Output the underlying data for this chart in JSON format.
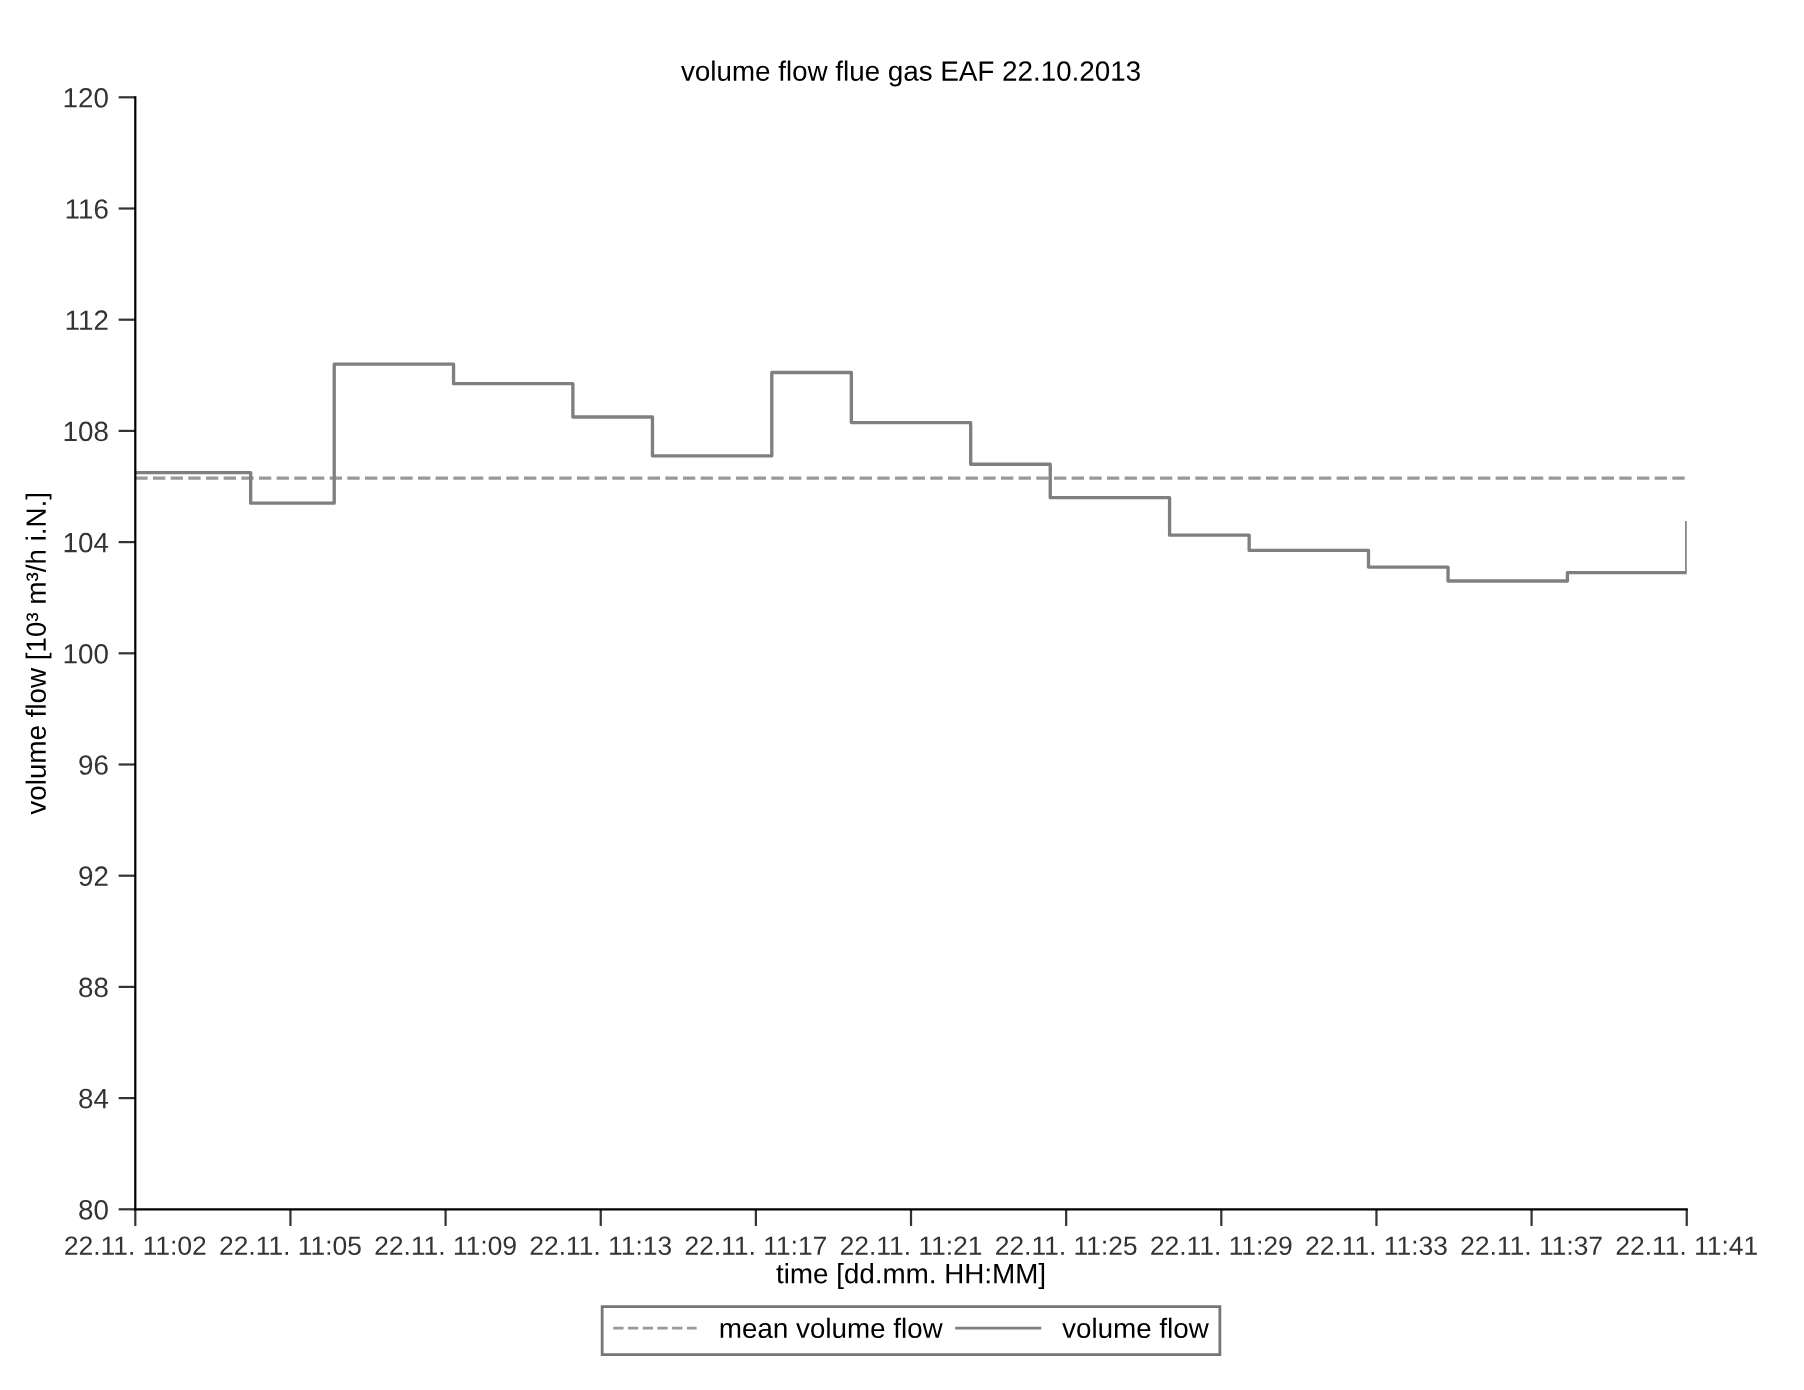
{
  "chart_data": {
    "type": "step",
    "title": "volume flow flue gas EAF 22.10.2013",
    "xlabel": "time [dd.mm. HH:MM]",
    "ylabel": "volume flow [10³ m³/h i.N.]",
    "x": [
      "2013-11-22T11:02",
      "2013-11-22T11:04:54",
      "2013-11-22T11:07",
      "2013-11-22T11:10",
      "2013-11-22T11:13",
      "2013-11-22T11:15",
      "2013-11-22T11:18",
      "2013-11-22T11:20",
      "2013-11-22T11:23",
      "2013-11-22T11:25",
      "2013-11-22T11:28",
      "2013-11-22T11:30",
      "2013-11-22T11:33",
      "2013-11-22T11:35",
      "2013-11-22T11:38",
      "2013-11-22T11:41"
    ],
    "series": [
      {
        "name": "volume flow",
        "color": "#7f7f7f",
        "line_style": "solid",
        "values": [
          106.5,
          105.4,
          110.4,
          109.7,
          108.5,
          107.1,
          110.1,
          108.3,
          106.8,
          105.6,
          104.25,
          103.7,
          103.1,
          102.6,
          102.9,
          104.7
        ]
      }
    ],
    "ref_lines": [
      {
        "axis": "y",
        "value": 106.3,
        "label": "mean volume flow",
        "color": "#999999",
        "line_style": "dashed"
      }
    ],
    "xlim": [
      "2013-11-22T11:02",
      "2013-11-22T11:41"
    ],
    "xticks": [
      {
        "value": "2013-11-22T11:02",
        "label": "22.11. 11:02"
      },
      {
        "value": "2013-11-22T11:05:54",
        "label": "22.11. 11:05"
      },
      {
        "value": "2013-11-22T11:09:48",
        "label": "22.11. 11:09"
      },
      {
        "value": "2013-11-22T11:13:42",
        "label": "22.11. 11:13"
      },
      {
        "value": "2013-11-22T11:17:36",
        "label": "22.11. 11:17"
      },
      {
        "value": "2013-11-22T11:21:30",
        "label": "22.11. 11:21"
      },
      {
        "value": "2013-11-22T11:25:24",
        "label": "22.11. 11:25"
      },
      {
        "value": "2013-11-22T11:29:18",
        "label": "22.11. 11:29"
      },
      {
        "value": "2013-11-22T11:33:12",
        "label": "22.11. 11:33"
      },
      {
        "value": "2013-11-22T11:37:06",
        "label": "22.11. 11:37"
      },
      {
        "value": "2013-11-22T11:41",
        "label": "22.11. 11:41"
      }
    ],
    "ylim": [
      80,
      120
    ],
    "yticks": [
      80,
      84,
      88,
      92,
      96,
      100,
      104,
      108,
      112,
      116,
      120
    ],
    "grid": false,
    "legend": "bottom",
    "marker": "none"
  }
}
